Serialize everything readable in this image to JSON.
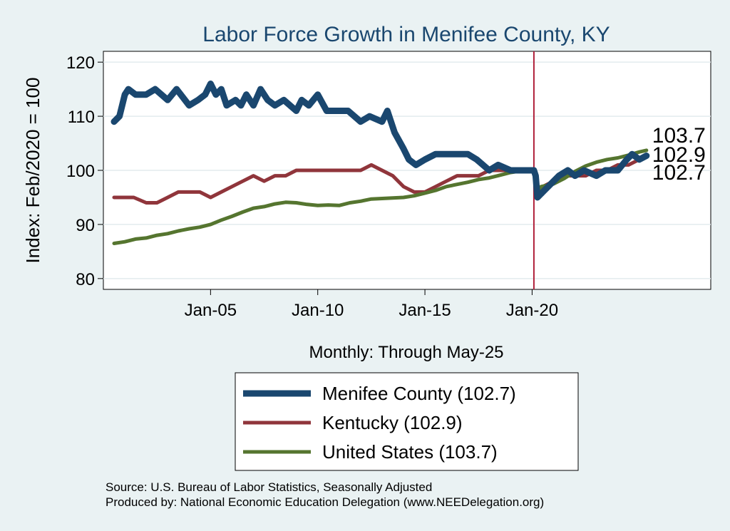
{
  "chart_data": {
    "type": "line",
    "title": "Labor Force Growth in Menifee  County, KY",
    "ylabel": "Index: Feb/2020 = 100",
    "xnote": "Monthly: Through May-25",
    "ylim": [
      78,
      122
    ],
    "xlim": [
      "2000-01",
      "2028-05"
    ],
    "yticks": [
      80,
      90,
      100,
      110,
      120
    ],
    "xticks": [
      {
        "label": "Jan-05",
        "x": "2005-01"
      },
      {
        "label": "Jan-10",
        "x": "2010-01"
      },
      {
        "label": "Jan-15",
        "x": "2015-01"
      },
      {
        "label": "Jan-20",
        "x": "2020-01"
      }
    ],
    "grid": true,
    "vline": {
      "x": "2020-02",
      "color": "#b0203a"
    },
    "legend_position": "bottom",
    "series": [
      {
        "name": "Menifee  County (102.7)",
        "color": "#1a476f",
        "end_label": "102.7",
        "points": [
          [
            "2000-07",
            109
          ],
          [
            "2000-10",
            110
          ],
          [
            "2001-01",
            114
          ],
          [
            "2001-03",
            115
          ],
          [
            "2001-07",
            114
          ],
          [
            "2002-01",
            114
          ],
          [
            "2002-06",
            115
          ],
          [
            "2003-01",
            113
          ],
          [
            "2003-06",
            115
          ],
          [
            "2004-01",
            112
          ],
          [
            "2004-06",
            113
          ],
          [
            "2004-10",
            114
          ],
          [
            "2005-01",
            116
          ],
          [
            "2005-04",
            114
          ],
          [
            "2005-07",
            115
          ],
          [
            "2005-10",
            112
          ],
          [
            "2006-03",
            113
          ],
          [
            "2006-06",
            112
          ],
          [
            "2006-09",
            114
          ],
          [
            "2007-01",
            112
          ],
          [
            "2007-05",
            115
          ],
          [
            "2007-09",
            113
          ],
          [
            "2008-01",
            112
          ],
          [
            "2008-06",
            113
          ],
          [
            "2009-01",
            111
          ],
          [
            "2009-04",
            113
          ],
          [
            "2009-08",
            112
          ],
          [
            "2010-01",
            114
          ],
          [
            "2010-06",
            111
          ],
          [
            "2011-01",
            111
          ],
          [
            "2011-06",
            111
          ],
          [
            "2012-01",
            109
          ],
          [
            "2012-06",
            110
          ],
          [
            "2013-01",
            109
          ],
          [
            "2013-04",
            111
          ],
          [
            "2013-08",
            107
          ],
          [
            "2014-01",
            104
          ],
          [
            "2014-04",
            102
          ],
          [
            "2014-08",
            101
          ],
          [
            "2015-01",
            102
          ],
          [
            "2015-07",
            103
          ],
          [
            "2016-01",
            103
          ],
          [
            "2016-06",
            103
          ],
          [
            "2017-01",
            103
          ],
          [
            "2017-06",
            102
          ],
          [
            "2018-01",
            100
          ],
          [
            "2018-06",
            101
          ],
          [
            "2019-01",
            100
          ],
          [
            "2019-06",
            100
          ],
          [
            "2020-02",
            100
          ],
          [
            "2020-03",
            99
          ],
          [
            "2020-04",
            95
          ],
          [
            "2020-07",
            96
          ],
          [
            "2021-01",
            98
          ],
          [
            "2021-04",
            99
          ],
          [
            "2021-09",
            100
          ],
          [
            "2022-01",
            99
          ],
          [
            "2022-06",
            100
          ],
          [
            "2023-01",
            99
          ],
          [
            "2023-06",
            100
          ],
          [
            "2024-01",
            100
          ],
          [
            "2024-06",
            102
          ],
          [
            "2024-09",
            103
          ],
          [
            "2025-01",
            102
          ],
          [
            "2025-05",
            102.7
          ]
        ]
      },
      {
        "name": "Kentucky (102.9)",
        "color": "#90353b",
        "end_label": "102.9",
        "points": [
          [
            "2000-07",
            95
          ],
          [
            "2001-01",
            95
          ],
          [
            "2001-06",
            95
          ],
          [
            "2002-01",
            94
          ],
          [
            "2002-07",
            94
          ],
          [
            "2003-01",
            95
          ],
          [
            "2003-07",
            96
          ],
          [
            "2004-01",
            96
          ],
          [
            "2004-07",
            96
          ],
          [
            "2005-01",
            95
          ],
          [
            "2005-07",
            96
          ],
          [
            "2006-01",
            97
          ],
          [
            "2006-07",
            98
          ],
          [
            "2007-01",
            99
          ],
          [
            "2007-07",
            98
          ],
          [
            "2008-01",
            99
          ],
          [
            "2008-07",
            99
          ],
          [
            "2009-01",
            100
          ],
          [
            "2009-07",
            100
          ],
          [
            "2010-01",
            100
          ],
          [
            "2010-07",
            100
          ],
          [
            "2011-01",
            100
          ],
          [
            "2011-07",
            100
          ],
          [
            "2012-01",
            100
          ],
          [
            "2012-07",
            101
          ],
          [
            "2013-01",
            100
          ],
          [
            "2013-07",
            99
          ],
          [
            "2014-01",
            97
          ],
          [
            "2014-07",
            96
          ],
          [
            "2015-01",
            96
          ],
          [
            "2015-07",
            97
          ],
          [
            "2016-01",
            98
          ],
          [
            "2016-07",
            99
          ],
          [
            "2017-01",
            99
          ],
          [
            "2017-07",
            99
          ],
          [
            "2018-01",
            100
          ],
          [
            "2018-07",
            100
          ],
          [
            "2019-01",
            100
          ],
          [
            "2019-07",
            100
          ],
          [
            "2020-02",
            100
          ],
          [
            "2020-04",
            96
          ],
          [
            "2020-07",
            97
          ],
          [
            "2021-01",
            98
          ],
          [
            "2021-07",
            99
          ],
          [
            "2022-01",
            99
          ],
          [
            "2022-07",
            99
          ],
          [
            "2023-01",
            100
          ],
          [
            "2023-07",
            100
          ],
          [
            "2024-01",
            101
          ],
          [
            "2024-07",
            101
          ],
          [
            "2025-01",
            102
          ],
          [
            "2025-05",
            102.9
          ]
        ]
      },
      {
        "name": "United States (103.7)",
        "color": "#55752f",
        "end_label": "103.7",
        "points": [
          [
            "2000-07",
            86.5
          ],
          [
            "2001-01",
            86.8
          ],
          [
            "2001-07",
            87.3
          ],
          [
            "2002-01",
            87.5
          ],
          [
            "2002-07",
            88
          ],
          [
            "2003-01",
            88.3
          ],
          [
            "2003-07",
            88.8
          ],
          [
            "2004-01",
            89.2
          ],
          [
            "2004-07",
            89.5
          ],
          [
            "2005-01",
            90
          ],
          [
            "2005-07",
            90.8
          ],
          [
            "2006-01",
            91.5
          ],
          [
            "2006-07",
            92.3
          ],
          [
            "2007-01",
            93
          ],
          [
            "2007-07",
            93.3
          ],
          [
            "2008-01",
            93.8
          ],
          [
            "2008-07",
            94.1
          ],
          [
            "2009-01",
            94
          ],
          [
            "2009-07",
            93.7
          ],
          [
            "2010-01",
            93.5
          ],
          [
            "2010-07",
            93.6
          ],
          [
            "2011-01",
            93.5
          ],
          [
            "2011-07",
            94
          ],
          [
            "2012-01",
            94.3
          ],
          [
            "2012-07",
            94.7
          ],
          [
            "2013-01",
            94.8
          ],
          [
            "2013-07",
            94.9
          ],
          [
            "2014-01",
            95
          ],
          [
            "2014-07",
            95.3
          ],
          [
            "2015-01",
            95.8
          ],
          [
            "2015-07",
            96.3
          ],
          [
            "2016-01",
            97
          ],
          [
            "2016-07",
            97.4
          ],
          [
            "2017-01",
            97.8
          ],
          [
            "2017-07",
            98.3
          ],
          [
            "2018-01",
            98.6
          ],
          [
            "2018-07",
            99.1
          ],
          [
            "2019-01",
            99.6
          ],
          [
            "2019-07",
            99.9
          ],
          [
            "2020-02",
            100
          ],
          [
            "2020-04",
            95
          ],
          [
            "2020-06",
            97
          ],
          [
            "2021-01",
            97.5
          ],
          [
            "2021-07",
            98.5
          ],
          [
            "2022-01",
            99.8
          ],
          [
            "2022-07",
            100.8
          ],
          [
            "2023-01",
            101.5
          ],
          [
            "2023-07",
            102
          ],
          [
            "2024-01",
            102.3
          ],
          [
            "2024-07",
            102.8
          ],
          [
            "2025-01",
            103.4
          ],
          [
            "2025-05",
            103.7
          ]
        ]
      }
    ],
    "end_labels_order": [
      "103.7",
      "102.9",
      "102.7"
    ],
    "source": "Source: U.S. Bureau of Labor Statistics, Seasonally Adjusted",
    "produced_by": "Produced by: National Economic Education Delegation (www.NEEDelegation.org)"
  }
}
